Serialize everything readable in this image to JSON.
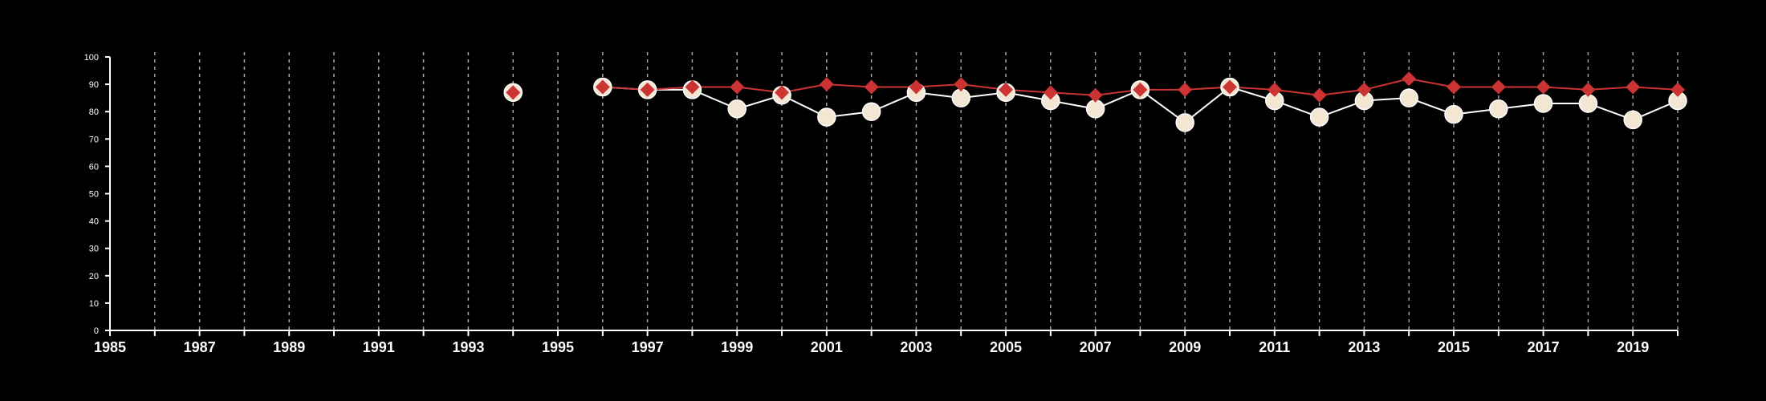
{
  "chart_data": {
    "type": "line",
    "title": "",
    "xlabel": "",
    "ylabel": "",
    "xlim": [
      1985,
      2020
    ],
    "ylim": [
      0,
      100
    ],
    "x_ticks": [
      1985,
      1987,
      1989,
      1991,
      1993,
      1995,
      1997,
      1999,
      2001,
      2003,
      2005,
      2007,
      2009,
      2011,
      2013,
      2015,
      2017,
      2019
    ],
    "y_ticks": [
      0,
      10,
      20,
      30,
      40,
      50,
      60,
      70,
      80,
      90,
      100
    ],
    "grid": "vertical dashed, every year",
    "legend": "none",
    "series": [
      {
        "marker": "circle",
        "color": "#f3e6d3",
        "edge_color": "#ffffff",
        "x": [
          1994,
          1996,
          1997,
          1998,
          1999,
          2000,
          2001,
          2002,
          2003,
          2004,
          2005,
          2006,
          2007,
          2008,
          2009,
          2010,
          2011,
          2012,
          2013,
          2014,
          2015,
          2016,
          2017,
          2018,
          2019,
          2020
        ],
        "values": [
          87,
          89,
          88,
          88,
          81,
          86,
          78,
          80,
          87,
          85,
          87,
          84,
          81,
          88,
          76,
          89,
          84,
          78,
          84,
          85,
          79,
          81,
          83,
          83,
          77,
          84
        ]
      },
      {
        "marker": "diamond",
        "color": "#cc3333",
        "x": [
          1994,
          1996,
          1997,
          1998,
          1999,
          2000,
          2001,
          2002,
          2003,
          2004,
          2005,
          2006,
          2007,
          2008,
          2009,
          2010,
          2011,
          2012,
          2013,
          2014,
          2015,
          2016,
          2017,
          2018,
          2019,
          2020
        ],
        "values": [
          87,
          89,
          88,
          89,
          89,
          87,
          90,
          89,
          89,
          90,
          88,
          87,
          86,
          88,
          88,
          89,
          88,
          86,
          88,
          92,
          89,
          89,
          89,
          88,
          89,
          88
        ]
      }
    ]
  }
}
